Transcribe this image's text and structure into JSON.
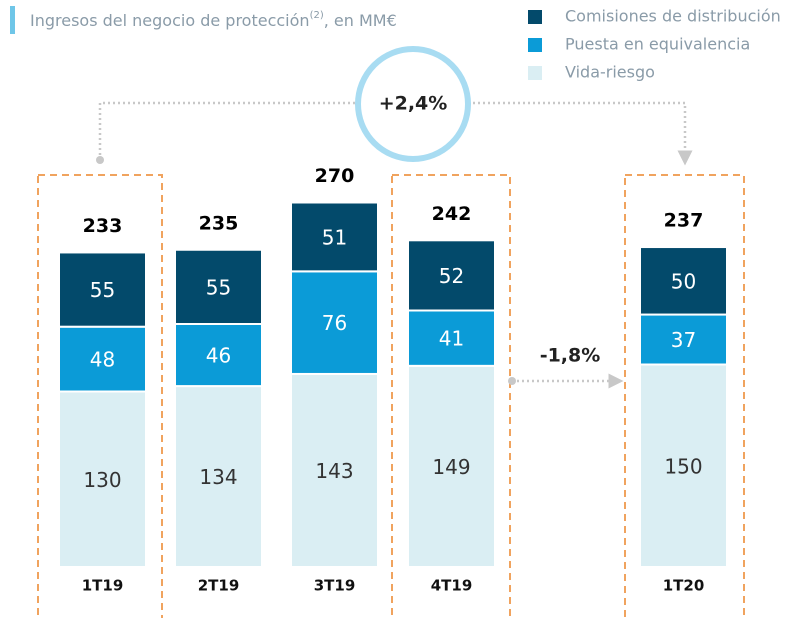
{
  "chart_data": {
    "type": "bar",
    "stacked": true,
    "title": "Ingresos del negocio de protección",
    "title_superscript": "(2)",
    "title_suffix": ", en MM€",
    "categories": [
      "1T19",
      "2T19",
      "3T19",
      "4T19",
      "1T20"
    ],
    "series": [
      {
        "name": "Comisiones de distribución",
        "color": "#034a6b",
        "values": [
          55,
          55,
          51,
          52,
          50
        ]
      },
      {
        "name": "Puesta en equivalencia",
        "color": "#0b9bd7",
        "values": [
          48,
          46,
          76,
          41,
          37
        ]
      },
      {
        "name": "Vida-riesgo",
        "color": "#daeef3",
        "values": [
          130,
          134,
          143,
          149,
          150
        ]
      }
    ],
    "totals": [
      233,
      235,
      270,
      242,
      237
    ],
    "annotations": [
      "+2,4%",
      "-1,8%"
    ]
  }
}
